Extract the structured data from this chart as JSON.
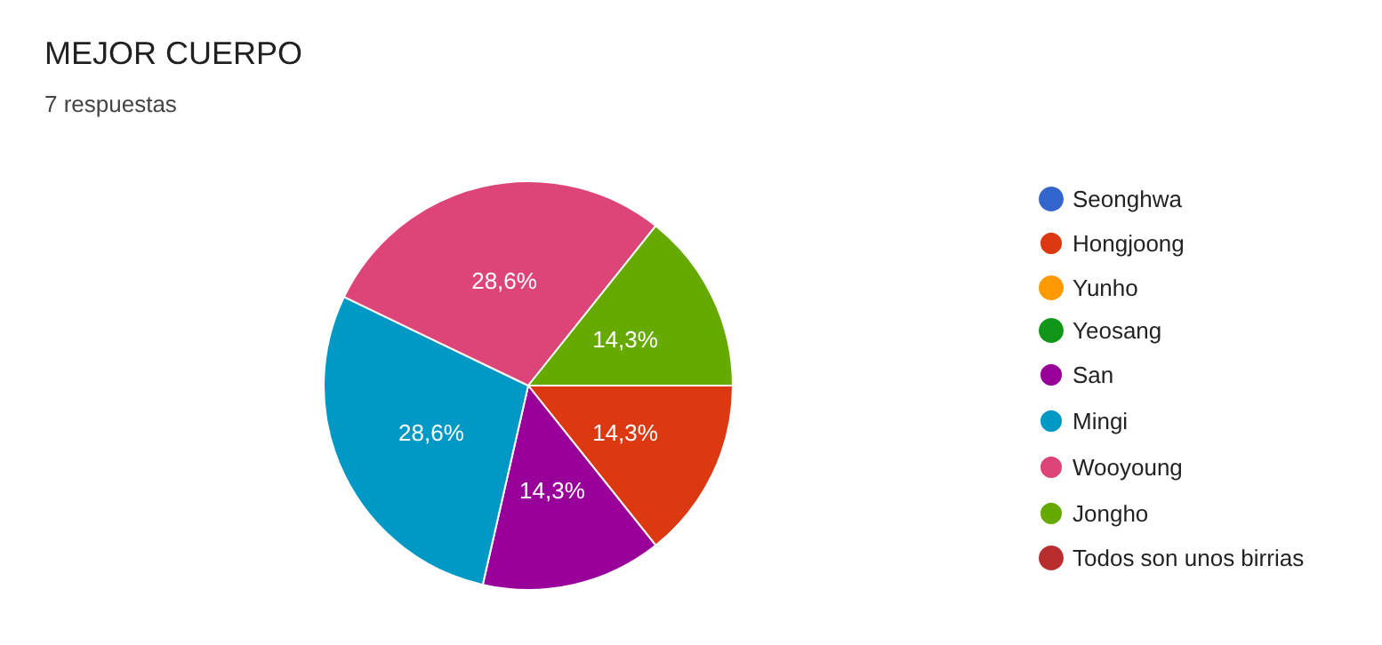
{
  "chart_data": {
    "type": "pie",
    "title": "MEJOR CUERPO",
    "subtitle": "7 respuestas",
    "categories": [
      "Seonghwa",
      "Hongjoong",
      "Yunho",
      "Yeosang",
      "San",
      "Mingi",
      "Wooyoung",
      "Jongho",
      "Todos son unos birrias"
    ],
    "values": [
      0,
      14.3,
      0,
      0,
      14.3,
      28.6,
      28.6,
      14.3,
      0
    ],
    "value_labels": [
      null,
      "14,3%",
      null,
      null,
      "14,3%",
      "28,6%",
      "28,6%",
      "14,3%",
      null
    ],
    "colors": [
      "#3366cc",
      "#dc3912",
      "#ff9900",
      "#109618",
      "#990099",
      "#0099c6",
      "#dd4477",
      "#66aa00",
      "#b82e2e"
    ],
    "legend": "right"
  }
}
